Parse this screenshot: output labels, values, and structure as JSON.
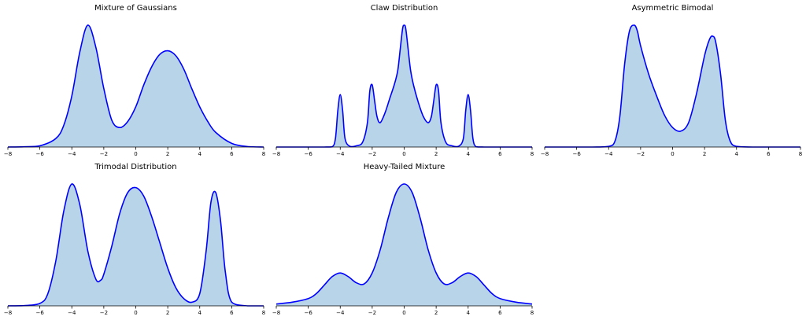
{
  "figure": {
    "layout": "2x3 grid, last cell empty"
  },
  "style": {
    "line_color": "#0000ff",
    "fill_color": "#b7d4e8",
    "axis_color": "#000000"
  },
  "chart_data": [
    {
      "type": "area",
      "title": "Mixture of Gaussians",
      "xlim": [
        -8,
        8
      ],
      "xticks": [
        -8,
        -6,
        -4,
        -2,
        0,
        2,
        4,
        6,
        8
      ],
      "y_axis": "hidden",
      "series": [
        {
          "x": [
            -8,
            -7,
            -6,
            -5,
            -4.5,
            -4,
            -3.5,
            -3,
            -2.5,
            -2,
            -1.5,
            -1,
            -0.5,
            0,
            0.5,
            1,
            1.5,
            2,
            2.5,
            3,
            3.5,
            4,
            4.5,
            5,
            6,
            7,
            8
          ],
          "y": [
            0,
            0.002,
            0.01,
            0.07,
            0.18,
            0.42,
            0.78,
            1.0,
            0.82,
            0.48,
            0.22,
            0.16,
            0.21,
            0.33,
            0.51,
            0.66,
            0.76,
            0.79,
            0.75,
            0.64,
            0.48,
            0.33,
            0.21,
            0.12,
            0.03,
            0.004,
            0
          ]
        }
      ]
    },
    {
      "type": "area",
      "title": "Claw Distribution",
      "xlim": [
        -8,
        8
      ],
      "xticks": [
        -8,
        -6,
        -4,
        -2,
        0,
        2,
        4,
        6,
        8
      ],
      "y_axis": "hidden",
      "series": [
        {
          "x": [
            -8,
            -6,
            -5,
            -4.5,
            -4.3,
            -4.15,
            -4,
            -3.85,
            -3.7,
            -3.4,
            -3.0,
            -2.6,
            -2.3,
            -2.15,
            -2,
            -1.85,
            -1.7,
            -1.5,
            -1.2,
            -0.9,
            -0.6,
            -0.4,
            -0.25,
            -0.1,
            0,
            0.1,
            0.25,
            0.4,
            0.6,
            0.9,
            1.2,
            1.5,
            1.7,
            1.85,
            2,
            2.15,
            2.3,
            2.6,
            3.0,
            3.4,
            3.7,
            3.85,
            4,
            4.15,
            4.3,
            4.5,
            5,
            6,
            8
          ],
          "y": [
            0,
            0,
            0,
            0.002,
            0.07,
            0.3,
            0.43,
            0.3,
            0.07,
            0.006,
            0.01,
            0.04,
            0.2,
            0.46,
            0.51,
            0.38,
            0.25,
            0.2,
            0.28,
            0.4,
            0.52,
            0.63,
            0.8,
            0.97,
            1.0,
            0.97,
            0.8,
            0.63,
            0.5,
            0.36,
            0.25,
            0.2,
            0.25,
            0.38,
            0.51,
            0.46,
            0.2,
            0.04,
            0.01,
            0.006,
            0.07,
            0.3,
            0.43,
            0.3,
            0.07,
            0.002,
            0,
            0,
            0
          ]
        }
      ]
    },
    {
      "type": "area",
      "title": "Asymmetric Bimodal",
      "xlim": [
        -8,
        8
      ],
      "xticks": [
        -8,
        -6,
        -4,
        -2,
        0,
        2,
        4,
        6,
        8
      ],
      "y_axis": "hidden",
      "series": [
        {
          "x": [
            -8,
            -5,
            -4,
            -3.6,
            -3.3,
            -3,
            -2.7,
            -2.4,
            -2.2,
            -2,
            -1.5,
            -1,
            -0.5,
            0,
            0.5,
            1,
            1.5,
            2,
            2.3,
            2.5,
            2.7,
            3,
            3.3,
            3.6,
            4,
            5,
            8
          ],
          "y": [
            0,
            0,
            0.005,
            0.05,
            0.25,
            0.68,
            0.95,
            1.0,
            0.95,
            0.83,
            0.6,
            0.42,
            0.26,
            0.16,
            0.13,
            0.2,
            0.44,
            0.75,
            0.88,
            0.91,
            0.86,
            0.6,
            0.22,
            0.05,
            0.005,
            0,
            0
          ]
        }
      ]
    },
    {
      "type": "area",
      "title": "Trimodal Distribution",
      "xlim": [
        -8,
        8
      ],
      "xticks": [
        -8,
        -6,
        -4,
        -2,
        0,
        2,
        4,
        6,
        8
      ],
      "y_axis": "hidden",
      "series": [
        {
          "x": [
            -8,
            -7,
            -6,
            -5.5,
            -5,
            -4.5,
            -4,
            -3.5,
            -3,
            -2.5,
            -2.2,
            -2,
            -1.5,
            -1,
            -0.5,
            0,
            0.5,
            1,
            1.5,
            2,
            2.5,
            3,
            3.5,
            4,
            4.4,
            4.7,
            5,
            5.3,
            5.6,
            6,
            7,
            8
          ],
          "y": [
            0,
            0.002,
            0.02,
            0.1,
            0.37,
            0.78,
            1.0,
            0.83,
            0.45,
            0.22,
            0.21,
            0.26,
            0.49,
            0.76,
            0.93,
            0.97,
            0.9,
            0.73,
            0.52,
            0.31,
            0.15,
            0.06,
            0.03,
            0.1,
            0.45,
            0.85,
            0.93,
            0.7,
            0.28,
            0.03,
            0,
            0
          ]
        }
      ]
    },
    {
      "type": "area",
      "title": "Heavy-Tailed Mixture",
      "xlim": [
        -8,
        8
      ],
      "xticks": [
        -8,
        -6,
        -4,
        -2,
        0,
        2,
        4,
        6,
        8
      ],
      "y_axis": "hidden",
      "series": [
        {
          "x": [
            -8,
            -7,
            -6,
            -5.5,
            -5,
            -4.5,
            -4,
            -3.5,
            -3,
            -2.5,
            -2,
            -1.5,
            -1,
            -0.5,
            0,
            0.5,
            1,
            1.5,
            2,
            2.5,
            3,
            3.5,
            4,
            4.5,
            5,
            5.5,
            6,
            7,
            8
          ],
          "y": [
            0.015,
            0.03,
            0.06,
            0.1,
            0.17,
            0.24,
            0.27,
            0.24,
            0.19,
            0.18,
            0.27,
            0.46,
            0.72,
            0.93,
            1.0,
            0.93,
            0.72,
            0.46,
            0.27,
            0.18,
            0.19,
            0.24,
            0.27,
            0.24,
            0.17,
            0.1,
            0.06,
            0.03,
            0.015
          ]
        }
      ]
    }
  ]
}
